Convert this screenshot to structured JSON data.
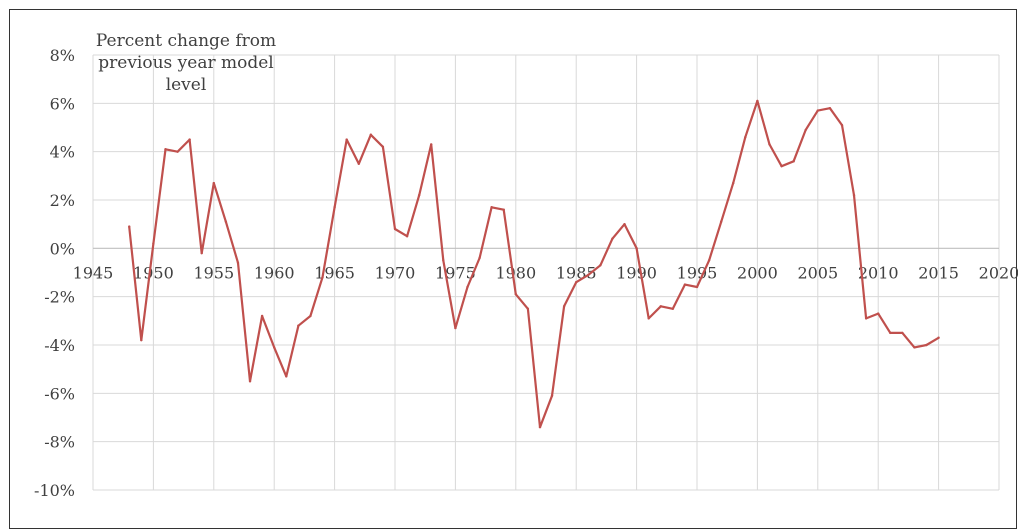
{
  "chart_data": {
    "type": "line",
    "title": "",
    "annotation_lines": [
      "Percent change from",
      "previous year model",
      "level"
    ],
    "xlabel": "",
    "ylabel": "",
    "xlim": [
      1945,
      2020
    ],
    "ylim": [
      -10,
      8
    ],
    "x_ticks": [
      1945,
      1950,
      1955,
      1960,
      1965,
      1970,
      1975,
      1980,
      1985,
      1990,
      1995,
      2000,
      2005,
      2010,
      2015,
      2020
    ],
    "y_ticks": [
      8,
      6,
      4,
      2,
      0,
      -2,
      -4,
      -6,
      -8,
      -10
    ],
    "y_tick_labels": [
      "8%",
      "6%",
      "4%",
      "2%",
      "0%",
      "-2%",
      "-4%",
      "-6%",
      "-8%",
      "-10%"
    ],
    "grid": true,
    "legend": "none",
    "series_color": "#c0504d",
    "series": [
      {
        "x": [
          1948,
          1949,
          1950,
          1951,
          1952,
          1953,
          1954,
          1955,
          1956,
          1957,
          1958,
          1959,
          1960,
          1961,
          1962,
          1963,
          1964,
          1965,
          1966,
          1967,
          1968,
          1969,
          1970,
          1971,
          1972,
          1973,
          1974,
          1975,
          1976,
          1977,
          1978,
          1979,
          1980,
          1981,
          1982,
          1983,
          1984,
          1985,
          1986,
          1987,
          1988,
          1989,
          1990,
          1991,
          1992,
          1993,
          1994,
          1995,
          1996,
          1997,
          1998,
          1999,
          2000,
          2001,
          2002,
          2003,
          2004,
          2005,
          2006,
          2007,
          2008,
          2009,
          2010,
          2011,
          2012,
          2013,
          2014,
          2015
        ],
        "values": [
          0.9,
          -3.8,
          0.2,
          4.1,
          4.0,
          4.5,
          -0.2,
          2.7,
          1.1,
          -0.6,
          -5.5,
          -2.8,
          -4.1,
          -5.3,
          -3.2,
          -2.8,
          -1.2,
          1.7,
          4.5,
          3.5,
          4.7,
          4.2,
          0.8,
          0.5,
          2.2,
          4.3,
          -0.5,
          -3.3,
          -1.6,
          -0.4,
          1.7,
          1.6,
          -1.9,
          -2.5,
          -7.4,
          -6.1,
          -2.4,
          -1.4,
          -1.1,
          -0.7,
          0.4,
          1.0,
          0.0,
          -2.9,
          -2.4,
          -2.5,
          -1.5,
          -1.6,
          -0.5,
          1.1,
          2.7,
          4.6,
          6.1,
          4.3,
          3.4,
          3.6,
          4.9,
          5.7,
          5.8,
          5.1,
          2.2,
          -2.9,
          -2.7,
          -3.5,
          -3.5,
          -4.1,
          -4.0,
          -3.7
        ]
      }
    ]
  }
}
